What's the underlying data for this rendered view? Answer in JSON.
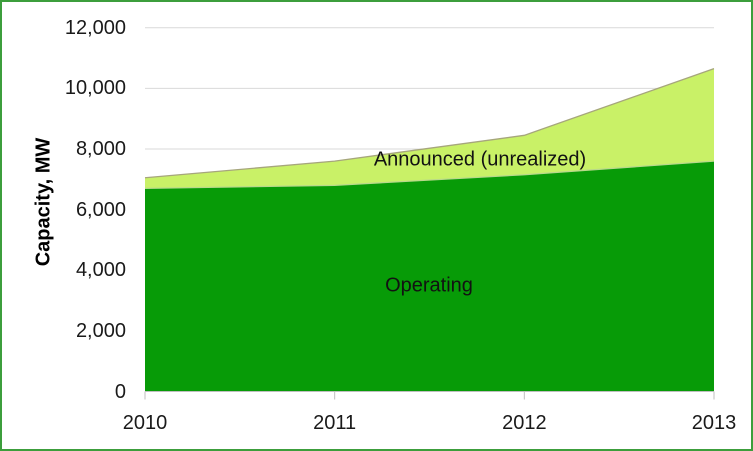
{
  "frame": {
    "background_color": "#ffffff",
    "border_color": "#3c9e3c"
  },
  "chart_data": {
    "type": "area",
    "stacked": true,
    "title": "",
    "xlabel": "",
    "ylabel": "Capacity, MW",
    "x": [
      2010,
      2011,
      2012,
      2013
    ],
    "xtick_labels": [
      "2010",
      "2011",
      "2012",
      "2013"
    ],
    "series": [
      {
        "name": "Operating",
        "values": [
          6700,
          6800,
          7150,
          7600
        ],
        "color": "#079b07",
        "edge_color": "#b9d98b"
      },
      {
        "name": "Announced (unrealized)",
        "values": [
          350,
          800,
          1300,
          3050
        ],
        "color": "#c9f167",
        "edge_color": "#a6a67c"
      }
    ],
    "stacked_totals": [
      7050,
      7600,
      8450,
      10650
    ],
    "ylim": [
      0,
      12000
    ],
    "ytick_step": 2000,
    "ytick_labels": [
      "0",
      "2,000",
      "4,000",
      "6,000",
      "8,000",
      "10,000",
      "12,000"
    ],
    "grid": true,
    "gridline_color": "#d9d9d9",
    "axis_line_color": "#bfbfbf",
    "legend": "none (labels drawn inside areas)"
  }
}
